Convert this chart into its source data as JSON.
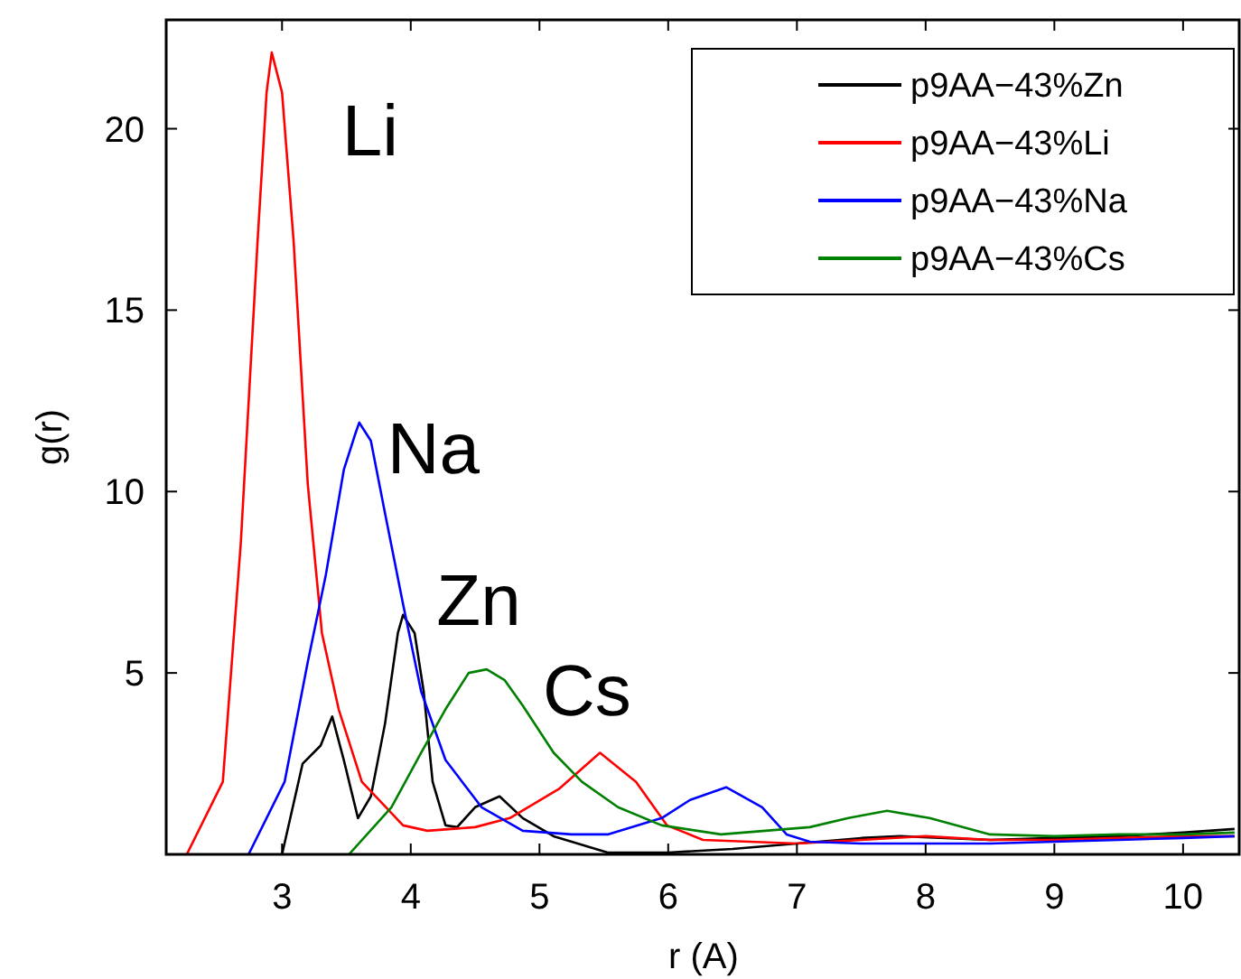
{
  "chart_data": {
    "type": "line",
    "xlabel": "r (A)",
    "ylabel": "g(r)",
    "xlim": [
      2.1,
      10.45
    ],
    "ylim": [
      0,
      23
    ],
    "xticks": [
      3,
      4,
      5,
      6,
      7,
      8,
      9,
      10
    ],
    "yticks": [
      5,
      10,
      15,
      20
    ],
    "grid": false,
    "legend": "top right",
    "marker": "none",
    "line_style": "solid",
    "annotations": [
      "Li",
      "Na",
      "Zn",
      "Cs"
    ],
    "series": [
      {
        "name": "p9AA−43%Zn",
        "color": "#000000",
        "x": [
          3.0,
          3.16,
          3.3,
          3.39,
          3.48,
          3.59,
          3.69,
          3.8,
          3.9,
          3.94,
          4.03,
          4.1,
          4.17,
          4.27,
          4.36,
          4.5,
          4.69,
          4.87,
          5.11,
          5.53,
          6.0,
          6.5,
          7.0,
          7.5,
          7.8,
          8.5,
          9.0,
          9.5,
          10.0,
          10.4
        ],
        "values": [
          0,
          2.5,
          3.0,
          3.8,
          2.6,
          1.0,
          1.6,
          3.6,
          6.1,
          6.6,
          6.1,
          4.5,
          2.0,
          0.8,
          0.75,
          1.3,
          1.6,
          1.0,
          0.5,
          0.05,
          0.05,
          0.15,
          0.3,
          0.45,
          0.5,
          0.4,
          0.45,
          0.5,
          0.6,
          0.7
        ]
      },
      {
        "name": "p9AA−43%Li",
        "color": "#ff0000",
        "x": [
          2.26,
          2.54,
          2.68,
          2.81,
          2.88,
          2.92,
          3.0,
          3.09,
          3.2,
          3.31,
          3.44,
          3.62,
          3.94,
          4.13,
          4.5,
          4.77,
          5.15,
          5.47,
          5.75,
          5.99,
          6.27,
          7.0,
          7.5,
          8.0,
          8.5,
          9.0,
          9.5,
          10.0,
          10.4
        ],
        "values": [
          0,
          2.0,
          8.6,
          16.9,
          21,
          22.1,
          21,
          16.9,
          10.2,
          6.1,
          4.0,
          2.0,
          0.8,
          0.65,
          0.75,
          1.0,
          1.8,
          2.8,
          2.0,
          0.8,
          0.4,
          0.3,
          0.4,
          0.5,
          0.4,
          0.4,
          0.45,
          0.5,
          0.5
        ]
      },
      {
        "name": "p9AA−43%Na",
        "color": "#0000ff",
        "x": [
          2.74,
          3.02,
          3.2,
          3.34,
          3.48,
          3.57,
          3.6,
          3.69,
          3.8,
          3.94,
          4.08,
          4.27,
          4.55,
          4.87,
          5.25,
          5.53,
          5.95,
          6.17,
          6.45,
          6.73,
          6.92,
          7.1,
          7.5,
          8.0,
          8.5,
          9.0,
          9.5,
          10.0,
          10.4
        ],
        "values": [
          0,
          2.0,
          5.3,
          7.7,
          10.6,
          11.6,
          11.9,
          11.4,
          9.4,
          6.9,
          4.5,
          2.6,
          1.3,
          0.65,
          0.55,
          0.55,
          1.0,
          1.5,
          1.85,
          1.3,
          0.55,
          0.35,
          0.3,
          0.3,
          0.3,
          0.35,
          0.4,
          0.45,
          0.5
        ]
      },
      {
        "name": "p9AA−43%Cs",
        "color": "#008000",
        "x": [
          3.52,
          3.85,
          4.08,
          4.27,
          4.45,
          4.59,
          4.73,
          4.87,
          5.11,
          5.33,
          5.61,
          5.95,
          6.41,
          7.1,
          7.4,
          7.7,
          8.03,
          8.5,
          9.0,
          9.5,
          10.0,
          10.4
        ],
        "values": [
          0,
          1.3,
          2.8,
          4.0,
          5.0,
          5.1,
          4.8,
          4.1,
          2.8,
          2.0,
          1.3,
          0.8,
          0.55,
          0.75,
          1.0,
          1.2,
          1.0,
          0.55,
          0.5,
          0.55,
          0.55,
          0.6
        ]
      }
    ]
  }
}
